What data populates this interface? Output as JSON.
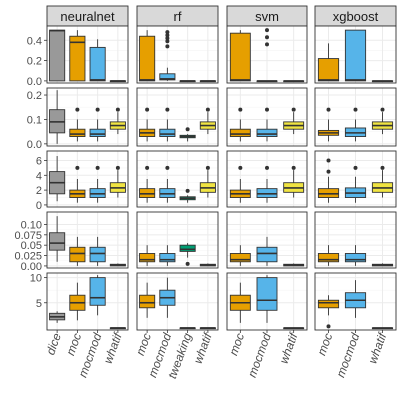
{
  "colors": {
    "panel_border": "#333333",
    "strip_fill": "#d9d9d9",
    "grid_major": "#ebebeb",
    "grid_minor": "#f5f5f5",
    "box_outline": "#333333",
    "method_fill": {
      "dice": "#999999",
      "moc": "#e69f00",
      "mocmod": "#56b4e9",
      "tweaking": "#009e73",
      "whatif": "#f0e442"
    }
  },
  "chart_data": {
    "type": "boxplot",
    "title": "",
    "xlabel": "",
    "ylabel": "",
    "grid": true,
    "legend": "none",
    "facets": [
      "neuralnet",
      "rf",
      "svm",
      "xgboost"
    ],
    "categories": {
      "neuralnet": [
        "dice",
        "moc",
        "mocmod",
        "whatif"
      ],
      "rf": [
        "moc",
        "mocmod",
        "tweaking",
        "whatif"
      ],
      "svm": [
        "moc",
        "mocmod",
        "whatif"
      ],
      "xgboost": [
        "moc",
        "mocmod",
        "whatif"
      ]
    },
    "rows": [
      {
        "ylim": [
          0,
          0.52
        ],
        "yticks": [
          0.0,
          0.2,
          0.4
        ],
        "ytick_labels": [
          "0.0",
          "0.2",
          "0.4"
        ],
        "boxes": {
          "neuralnet": [
            {
              "category": "dice",
              "min": 0,
              "q1": 0,
              "median": 0.495,
              "q3": 0.5,
              "max": 0.5,
              "outliers": []
            },
            {
              "category": "moc",
              "min": 0,
              "q1": 0,
              "median": 0.38,
              "q3": 0.44,
              "max": 0.5,
              "outliers": []
            },
            {
              "category": "mocmod",
              "min": 0,
              "q1": 0,
              "median": 0.01,
              "q3": 0.33,
              "max": 0.41,
              "outliers": []
            },
            {
              "category": "whatif",
              "min": 0,
              "q1": 0,
              "median": 0,
              "q3": 0,
              "max": 0,
              "outliers": []
            }
          ],
          "rf": [
            {
              "category": "moc",
              "min": 0,
              "q1": 0,
              "median": 0.01,
              "q3": 0.44,
              "max": 0.5,
              "outliers": []
            },
            {
              "category": "mocmod",
              "min": 0,
              "q1": 0.01,
              "median": 0.02,
              "q3": 0.07,
              "max": 0.13,
              "outliers": [
                0.34,
                0.39,
                0.42,
                0.45,
                0.48
              ]
            },
            {
              "category": "tweaking",
              "min": 0,
              "q1": 0,
              "median": 0,
              "q3": 0,
              "max": 0,
              "outliers": []
            },
            {
              "category": "whatif",
              "min": 0,
              "q1": 0,
              "median": 0,
              "q3": 0,
              "max": 0,
              "outliers": []
            }
          ],
          "svm": [
            {
              "category": "moc",
              "min": 0,
              "q1": 0,
              "median": 0.01,
              "q3": 0.47,
              "max": 0.5,
              "outliers": []
            },
            {
              "category": "mocmod",
              "min": 0,
              "q1": 0,
              "median": 0,
              "q3": 0,
              "max": 0,
              "outliers": [
                0.36,
                0.43,
                0.5
              ]
            },
            {
              "category": "whatif",
              "min": 0,
              "q1": 0,
              "median": 0,
              "q3": 0,
              "max": 0,
              "outliers": []
            }
          ],
          "xgboost": [
            {
              "category": "moc",
              "min": 0,
              "q1": 0,
              "median": 0.01,
              "q3": 0.22,
              "max": 0.37,
              "outliers": []
            },
            {
              "category": "mocmod",
              "min": 0,
              "q1": 0,
              "median": 0.01,
              "q3": 0.5,
              "max": 0.5,
              "outliers": []
            },
            {
              "category": "whatif",
              "min": 0,
              "q1": 0,
              "median": 0,
              "q3": 0,
              "max": 0,
              "outliers": []
            }
          ]
        }
      },
      {
        "ylim": [
          0,
          0.22
        ],
        "yticks": [
          0.0,
          0.1,
          0.2
        ],
        "ytick_labels": [
          "0.0",
          "0.1",
          "0.2"
        ],
        "boxes": {
          "neuralnet": [
            {
              "category": "dice",
              "min": 0,
              "q1": 0.045,
              "median": 0.09,
              "q3": 0.14,
              "max": 0.22,
              "outliers": []
            },
            {
              "category": "moc",
              "min": 0.01,
              "q1": 0.03,
              "median": 0.04,
              "q3": 0.06,
              "max": 0.1,
              "outliers": [
                0.14
              ]
            },
            {
              "category": "mocmod",
              "min": 0.01,
              "q1": 0.03,
              "median": 0.04,
              "q3": 0.06,
              "max": 0.1,
              "outliers": [
                0.14
              ]
            },
            {
              "category": "whatif",
              "min": 0.04,
              "q1": 0.06,
              "median": 0.075,
              "q3": 0.09,
              "max": 0.13,
              "outliers": [
                0.14
              ]
            }
          ],
          "rf": [
            {
              "category": "moc",
              "min": 0.01,
              "q1": 0.03,
              "median": 0.045,
              "q3": 0.06,
              "max": 0.1,
              "outliers": [
                0.14
              ]
            },
            {
              "category": "mocmod",
              "min": 0.01,
              "q1": 0.03,
              "median": 0.04,
              "q3": 0.06,
              "max": 0.1,
              "outliers": [
                0.14
              ]
            },
            {
              "category": "tweaking",
              "min": 0.01,
              "q1": 0.025,
              "median": 0.03,
              "q3": 0.035,
              "max": 0.04,
              "outliers": [
                0.06
              ]
            },
            {
              "category": "whatif",
              "min": 0.04,
              "q1": 0.06,
              "median": 0.075,
              "q3": 0.09,
              "max": 0.13,
              "outliers": [
                0.14
              ]
            }
          ],
          "svm": [
            {
              "category": "moc",
              "min": 0.01,
              "q1": 0.03,
              "median": 0.04,
              "q3": 0.06,
              "max": 0.1,
              "outliers": [
                0.14
              ]
            },
            {
              "category": "mocmod",
              "min": 0.01,
              "q1": 0.03,
              "median": 0.04,
              "q3": 0.06,
              "max": 0.1,
              "outliers": [
                0.14
              ]
            },
            {
              "category": "whatif",
              "min": 0.04,
              "q1": 0.06,
              "median": 0.075,
              "q3": 0.09,
              "max": 0.13,
              "outliers": [
                0.14
              ]
            }
          ],
          "xgboost": [
            {
              "category": "moc",
              "min": 0.01,
              "q1": 0.035,
              "median": 0.045,
              "q3": 0.055,
              "max": 0.1,
              "outliers": [
                0.14
              ]
            },
            {
              "category": "mocmod",
              "min": 0.01,
              "q1": 0.03,
              "median": 0.045,
              "q3": 0.065,
              "max": 0.1,
              "outliers": [
                0.14
              ]
            },
            {
              "category": "whatif",
              "min": 0.04,
              "q1": 0.06,
              "median": 0.075,
              "q3": 0.09,
              "max": 0.13,
              "outliers": [
                0.14
              ]
            }
          ]
        }
      },
      {
        "ylim": [
          0,
          7
        ],
        "yticks": [
          0,
          2,
          4,
          6
        ],
        "ytick_labels": [
          "0",
          "2",
          "4",
          "6"
        ],
        "boxes": {
          "neuralnet": [
            {
              "category": "dice",
              "min": 0.5,
              "q1": 1.5,
              "median": 3,
              "q3": 4.5,
              "max": 6.6,
              "outliers": []
            },
            {
              "category": "moc",
              "min": 0.3,
              "q1": 1,
              "median": 1.5,
              "q3": 2,
              "max": 3.5,
              "outliers": [
                5
              ]
            },
            {
              "category": "mocmod",
              "min": 0.3,
              "q1": 1,
              "median": 1.5,
              "q3": 2.2,
              "max": 3.5,
              "outliers": [
                5
              ]
            },
            {
              "category": "whatif",
              "min": 1,
              "q1": 1.7,
              "median": 2.3,
              "q3": 3,
              "max": 4.7,
              "outliers": [
                5
              ]
            }
          ],
          "rf": [
            {
              "category": "moc",
              "min": 0.3,
              "q1": 1,
              "median": 1.5,
              "q3": 2.2,
              "max": 3.5,
              "outliers": [
                5
              ]
            },
            {
              "category": "mocmod",
              "min": 0.3,
              "q1": 1,
              "median": 1.5,
              "q3": 2.2,
              "max": 3.5,
              "outliers": [
                5
              ]
            },
            {
              "category": "tweaking",
              "min": 0.3,
              "q1": 0.7,
              "median": 0.9,
              "q3": 1.1,
              "max": 1.3,
              "outliers": [
                1.9
              ]
            },
            {
              "category": "whatif",
              "min": 1,
              "q1": 1.7,
              "median": 2.3,
              "q3": 3,
              "max": 4.7,
              "outliers": [
                5
              ]
            }
          ],
          "svm": [
            {
              "category": "moc",
              "min": 0.3,
              "q1": 1,
              "median": 1.5,
              "q3": 2,
              "max": 3.5,
              "outliers": [
                5
              ]
            },
            {
              "category": "mocmod",
              "min": 0.3,
              "q1": 1,
              "median": 1.5,
              "q3": 2.2,
              "max": 3.5,
              "outliers": [
                5
              ]
            },
            {
              "category": "whatif",
              "min": 1,
              "q1": 1.7,
              "median": 2.3,
              "q3": 3,
              "max": 4.7,
              "outliers": [
                5
              ]
            }
          ],
          "xgboost": [
            {
              "category": "moc",
              "min": 0.3,
              "q1": 1,
              "median": 1.5,
              "q3": 2.2,
              "max": 3.8,
              "outliers": [
                4.5,
                6
              ]
            },
            {
              "category": "mocmod",
              "min": 0.3,
              "q1": 1,
              "median": 1.6,
              "q3": 2.3,
              "max": 3.8,
              "outliers": [
                5
              ]
            },
            {
              "category": "whatif",
              "min": 1,
              "q1": 1.7,
              "median": 2.3,
              "q3": 3,
              "max": 4.7,
              "outliers": [
                5
              ]
            }
          ]
        }
      },
      {
        "ylim": [
          0,
          0.125
        ],
        "yticks": [
          0.0,
          0.025,
          0.05,
          0.075,
          0.1
        ],
        "ytick_labels": [
          "0.00",
          "0.025",
          "0.05",
          "0.075",
          "0.10"
        ],
        "boxes": {
          "neuralnet": [
            {
              "category": "dice",
              "min": 0.01,
              "q1": 0.038,
              "median": 0.055,
              "q3": 0.08,
              "max": 0.12,
              "outliers": []
            },
            {
              "category": "moc",
              "min": 0,
              "q1": 0.01,
              "median": 0.03,
              "q3": 0.045,
              "max": 0.07,
              "outliers": []
            },
            {
              "category": "mocmod",
              "min": 0,
              "q1": 0.01,
              "median": 0.03,
              "q3": 0.045,
              "max": 0.07,
              "outliers": []
            },
            {
              "category": "whatif",
              "min": 0,
              "q1": 0,
              "median": 0.002,
              "q3": 0.004,
              "max": 0.006,
              "outliers": []
            }
          ],
          "rf": [
            {
              "category": "moc",
              "min": 0,
              "q1": 0.01,
              "median": 0.015,
              "q3": 0.03,
              "max": 0.05,
              "outliers": []
            },
            {
              "category": "mocmod",
              "min": 0,
              "q1": 0.01,
              "median": 0.015,
              "q3": 0.03,
              "max": 0.05,
              "outliers": []
            },
            {
              "category": "tweaking",
              "min": 0.02,
              "q1": 0.035,
              "median": 0.04,
              "q3": 0.05,
              "max": 0.055,
              "outliers": [
                0.005
              ]
            },
            {
              "category": "whatif",
              "min": 0,
              "q1": 0,
              "median": 0.002,
              "q3": 0.004,
              "max": 0.006,
              "outliers": []
            }
          ],
          "svm": [
            {
              "category": "moc",
              "min": 0,
              "q1": 0.01,
              "median": 0.015,
              "q3": 0.03,
              "max": 0.05,
              "outliers": []
            },
            {
              "category": "mocmod",
              "min": 0,
              "q1": 0.01,
              "median": 0.03,
              "q3": 0.045,
              "max": 0.07,
              "outliers": []
            },
            {
              "category": "whatif",
              "min": 0,
              "q1": 0,
              "median": 0.002,
              "q3": 0.004,
              "max": 0.006,
              "outliers": []
            }
          ],
          "xgboost": [
            {
              "category": "moc",
              "min": 0,
              "q1": 0.01,
              "median": 0.015,
              "q3": 0.03,
              "max": 0.05,
              "outliers": []
            },
            {
              "category": "mocmod",
              "min": 0,
              "q1": 0.01,
              "median": 0.015,
              "q3": 0.03,
              "max": 0.05,
              "outliers": []
            },
            {
              "category": "whatif",
              "min": 0,
              "q1": 0,
              "median": 0.002,
              "q3": 0.004,
              "max": 0.006,
              "outliers": []
            }
          ]
        }
      },
      {
        "ylim": [
          0,
          10.5
        ],
        "yticks": [
          5,
          10
        ],
        "ytick_labels": [
          "5",
          "10"
        ],
        "boxes": {
          "neuralnet": [
            {
              "category": "dice",
              "min": 1,
              "q1": 1.6,
              "median": 2.2,
              "q3": 2.9,
              "max": 3.3,
              "outliers": []
            },
            {
              "category": "moc",
              "min": 1.5,
              "q1": 3.5,
              "median": 5,
              "q3": 6.5,
              "max": 9,
              "outliers": []
            },
            {
              "category": "mocmod",
              "min": 2.5,
              "q1": 4.5,
              "median": 6,
              "q3": 10,
              "max": 10.5,
              "outliers": []
            },
            {
              "category": "whatif",
              "min": 0,
              "q1": 0,
              "median": 0,
              "q3": 0,
              "max": 0,
              "outliers": []
            }
          ],
          "rf": [
            {
              "category": "moc",
              "min": 2,
              "q1": 4,
              "median": 5,
              "q3": 6.5,
              "max": 9,
              "outliers": []
            },
            {
              "category": "mocmod",
              "min": 2,
              "q1": 4.5,
              "median": 6,
              "q3": 7.5,
              "max": 10,
              "outliers": []
            },
            {
              "category": "tweaking",
              "min": 0,
              "q1": 0,
              "median": 0,
              "q3": 0,
              "max": 0,
              "outliers": []
            },
            {
              "category": "whatif",
              "min": 0,
              "q1": 0,
              "median": 0,
              "q3": 0,
              "max": 0,
              "outliers": []
            }
          ],
          "svm": [
            {
              "category": "moc",
              "min": 1,
              "q1": 3.5,
              "median": 5,
              "q3": 6.5,
              "max": 9,
              "outliers": []
            },
            {
              "category": "mocmod",
              "min": 1,
              "q1": 3.5,
              "median": 5.5,
              "q3": 10,
              "max": 10.5,
              "outliers": []
            },
            {
              "category": "whatif",
              "min": 0,
              "q1": 0,
              "median": 0,
              "q3": 0,
              "max": 0,
              "outliers": []
            }
          ],
          "xgboost": [
            {
              "category": "moc",
              "min": 2.5,
              "q1": 4,
              "median": 5,
              "q3": 5.5,
              "max": 6.5,
              "outliers": [
                0.3
              ]
            },
            {
              "category": "mocmod",
              "min": 2,
              "q1": 4,
              "median": 5.5,
              "q3": 7,
              "max": 9.5,
              "outliers": []
            },
            {
              "category": "whatif",
              "min": 0,
              "q1": 0,
              "median": 0,
              "q3": 0,
              "max": 0,
              "outliers": []
            }
          ]
        }
      }
    ]
  }
}
